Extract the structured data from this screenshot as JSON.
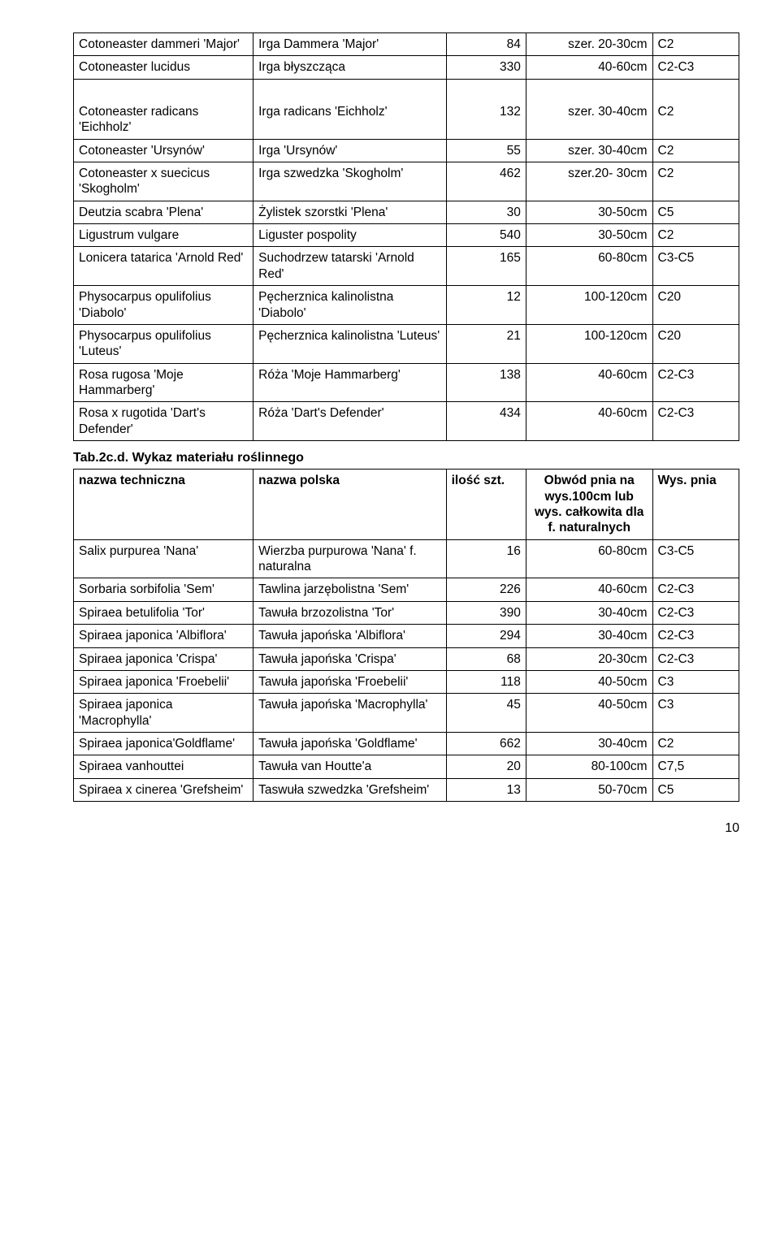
{
  "table1": {
    "rows": [
      {
        "name": "Cotoneaster dammeri 'Major'",
        "polish": "Irga Dammera 'Major'",
        "qty": "84",
        "size": "szer. 20-30cm",
        "pot": "C2"
      },
      {
        "name": "Cotoneaster lucidus",
        "polish": "Irga błyszcząca",
        "qty": "330",
        "size": "40-60cm",
        "pot": "C2-C3"
      },
      {
        "name": "Cotoneaster radicans 'Eichholz'",
        "polish": "Irga radicans 'Eichholz'",
        "qty": "132",
        "size": "szer. 30-40cm",
        "pot": "C2",
        "gap": true
      },
      {
        "name": "Cotoneaster 'Ursynów'",
        "polish": "Irga 'Ursynów'",
        "qty": "55",
        "size": "szer. 30-40cm",
        "pot": "C2"
      },
      {
        "name": "Cotoneaster x suecicus 'Skogholm'",
        "polish": "Irga szwedzka 'Skogholm'",
        "qty": "462",
        "size": "szer.20- 30cm",
        "pot": "C2"
      },
      {
        "name": "Deutzia scabra 'Plena'",
        "polish": "Żylistek szorstki 'Plena'",
        "qty": "30",
        "size": "30-50cm",
        "pot": "C5"
      },
      {
        "name": "Ligustrum vulgare",
        "polish": "Liguster pospolity",
        "qty": "540",
        "size": "30-50cm",
        "pot": "C2"
      },
      {
        "name": "Lonicera tatarica 'Arnold Red'",
        "polish": "Suchodrzew tatarski 'Arnold Red'",
        "qty": "165",
        "size": "60-80cm",
        "pot": "C3-C5"
      },
      {
        "name": "Physocarpus opulifolius 'Diabolo'",
        "polish": "Pęcherznica kalinolistna 'Diabolo'",
        "qty": "12",
        "size": "100-120cm",
        "pot": "C20"
      },
      {
        "name": "Physocarpus opulifolius 'Luteus'",
        "polish": "Pęcherznica kalinolistna 'Luteus'",
        "qty": "21",
        "size": "100-120cm",
        "pot": "C20"
      },
      {
        "name": "Rosa rugosa 'Moje Hammarberg'",
        "polish": "Róża 'Moje Hammarberg'",
        "qty": "138",
        "size": "40-60cm",
        "pot": "C2-C3"
      },
      {
        "name": "Rosa x rugotida 'Dart's Defender'",
        "polish": "Róża 'Dart's Defender'",
        "qty": "434",
        "size": "40-60cm",
        "pot": "C2-C3"
      }
    ]
  },
  "table2": {
    "title": "Tab.2c.d. Wykaz materiału roślinnego",
    "headers": {
      "name": "nazwa techniczna",
      "polish": "nazwa polska",
      "qty": "ilość szt.",
      "size": "Obwód pnia na wys.100cm lub wys. całkowita dla f. naturalnych",
      "pot": "Wys. pnia"
    },
    "rows": [
      {
        "name": "Salix purpurea 'Nana'",
        "polish": "Wierzba purpurowa 'Nana' f. naturalna",
        "qty": "16",
        "size": "60-80cm",
        "pot": "C3-C5"
      },
      {
        "name": "Sorbaria sorbifolia 'Sem'",
        "polish": "Tawlina jarzębolistna 'Sem'",
        "qty": "226",
        "size": "40-60cm",
        "pot": "C2-C3"
      },
      {
        "name": "Spiraea betulifolia 'Tor'",
        "polish": "Tawuła brzozolistna 'Tor'",
        "qty": "390",
        "size": "30-40cm",
        "pot": "C2-C3"
      },
      {
        "name": "Spiraea japonica 'Albiflora'",
        "polish": "Tawuła japońska 'Albiflora'",
        "qty": "294",
        "size": "30-40cm",
        "pot": "C2-C3"
      },
      {
        "name": "Spiraea japonica 'Crispa'",
        "polish": "Tawuła japońska 'Crispa'",
        "qty": "68",
        "size": "20-30cm",
        "pot": "C2-C3"
      },
      {
        "name": "Spiraea japonica 'Froebelii'",
        "polish": "Tawuła japońska 'Froebelii'",
        "qty": "118",
        "size": "40-50cm",
        "pot": "C3"
      },
      {
        "name": "Spiraea japonica 'Macrophylla'",
        "polish": "Tawuła japońska 'Macrophylla'",
        "qty": "45",
        "size": "40-50cm",
        "pot": "C3"
      },
      {
        "name": "Spiraea japonica'Goldflame'",
        "polish": "Tawuła japońska 'Goldflame'",
        "qty": "662",
        "size": "30-40cm",
        "pot": "C2"
      },
      {
        "name": "Spiraea vanhouttei",
        "polish": "Tawuła van Houtte'a",
        "qty": "20",
        "size": "80-100cm",
        "pot": "C7,5"
      },
      {
        "name": "Spiraea x cinerea 'Grefsheim'",
        "polish": "Taswuła szwedzka 'Grefsheim'",
        "qty": "13",
        "size": "50-70cm",
        "pot": "C5"
      }
    ]
  },
  "page_number": "10",
  "colors": {
    "border": "#000000",
    "background": "#ffffff",
    "text": "#000000"
  }
}
